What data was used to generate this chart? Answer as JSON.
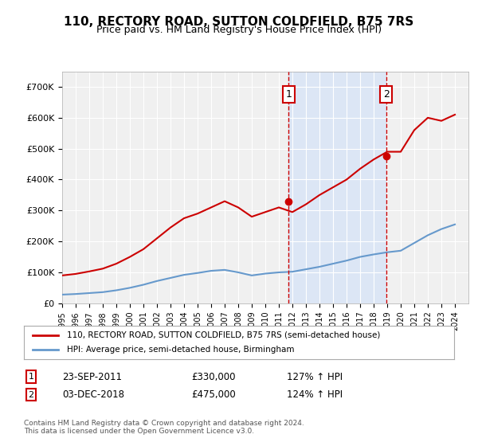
{
  "title": "110, RECTORY ROAD, SUTTON COLDFIELD, B75 7RS",
  "subtitle": "Price paid vs. HM Land Registry's House Price Index (HPI)",
  "legend_line1": "110, RECTORY ROAD, SUTTON COLDFIELD, B75 7RS (semi-detached house)",
  "legend_line2": "HPI: Average price, semi-detached house, Birmingham",
  "marker1_label": "1",
  "marker1_date": "23-SEP-2011",
  "marker1_price": "£330,000",
  "marker1_hpi": "127% ↑ HPI",
  "marker1_year": 2011.73,
  "marker1_value": 330000,
  "marker2_label": "2",
  "marker2_date": "03-DEC-2018",
  "marker2_price": "£475,000",
  "marker2_hpi": "124% ↑ HPI",
  "marker2_year": 2018.92,
  "marker2_value": 475000,
  "ylabel_ticks": [
    "£0",
    "£100K",
    "£200K",
    "£300K",
    "£400K",
    "£500K",
    "£600K",
    "£700K"
  ],
  "ytick_values": [
    0,
    100000,
    200000,
    300000,
    400000,
    500000,
    600000,
    700000
  ],
  "ylim": [
    0,
    750000
  ],
  "background_color": "#ffffff",
  "plot_bg_color": "#f0f0f0",
  "highlight_bg_color": "#dce6f5",
  "red_line_color": "#cc0000",
  "blue_line_color": "#6699cc",
  "grid_color": "#ffffff",
  "footnote": "Contains HM Land Registry data © Crown copyright and database right 2024.\nThis data is licensed under the Open Government Licence v3.0.",
  "hpi_data_years": [
    1995,
    1996,
    1997,
    1998,
    1999,
    2000,
    2001,
    2002,
    2003,
    2004,
    2005,
    2006,
    2007,
    2008,
    2009,
    2010,
    2011,
    2012,
    2013,
    2014,
    2015,
    2016,
    2017,
    2018,
    2019,
    2020,
    2021,
    2022,
    2023,
    2024
  ],
  "hpi_values": [
    28000,
    30000,
    33000,
    36000,
    42000,
    50000,
    60000,
    72000,
    82000,
    92000,
    98000,
    105000,
    108000,
    100000,
    90000,
    96000,
    100000,
    102000,
    110000,
    118000,
    128000,
    138000,
    150000,
    158000,
    165000,
    170000,
    195000,
    220000,
    240000,
    255000
  ],
  "prop_data_years": [
    1995,
    1996,
    1997,
    1998,
    1999,
    2000,
    2001,
    2002,
    2003,
    2004,
    2005,
    2006,
    2007,
    2008,
    2009,
    2010,
    2011,
    2012,
    2013,
    2014,
    2015,
    2016,
    2017,
    2018,
    2019,
    2020,
    2021,
    2022,
    2023,
    2024
  ],
  "prop_values": [
    90000,
    95000,
    103000,
    112000,
    128000,
    150000,
    175000,
    210000,
    245000,
    275000,
    290000,
    310000,
    330000,
    310000,
    280000,
    295000,
    310000,
    295000,
    320000,
    350000,
    375000,
    400000,
    435000,
    465000,
    490000,
    490000,
    560000,
    600000,
    590000,
    610000
  ]
}
